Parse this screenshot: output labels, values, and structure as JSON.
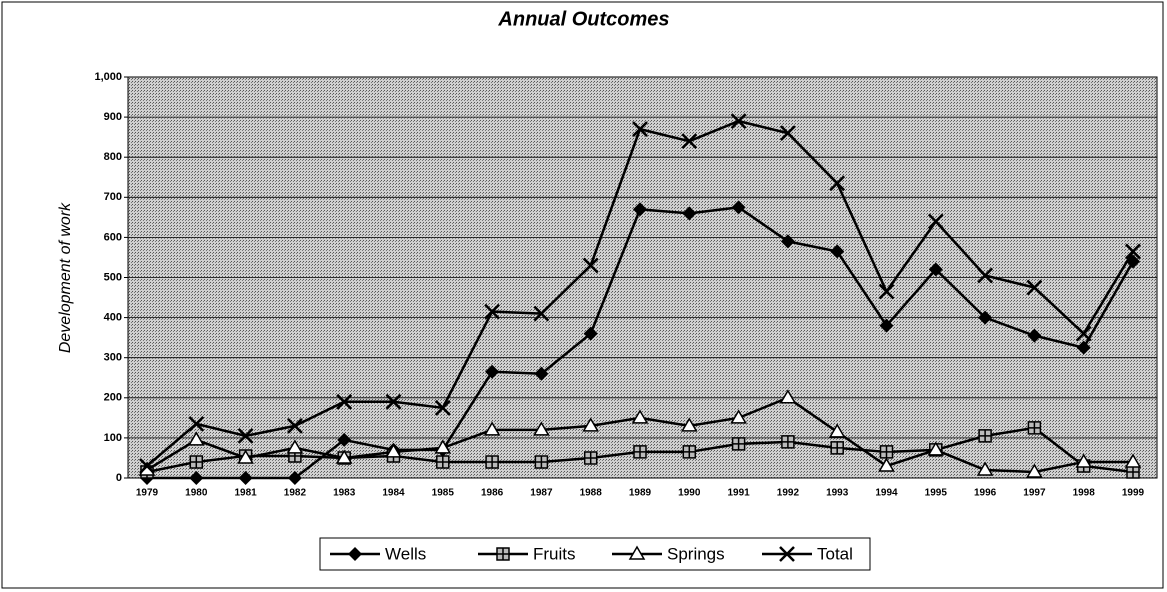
{
  "chart_data": {
    "type": "line",
    "title": "Annual Outcomes",
    "y_label": "Development of work",
    "categories": [
      "1979",
      "1980",
      "1981",
      "1982",
      "1983",
      "1984",
      "1985",
      "1986",
      "1987",
      "1988",
      "1989",
      "1990",
      "1991",
      "1992",
      "1993",
      "1994",
      "1995",
      "1996",
      "1997",
      "1998",
      "1999"
    ],
    "series": [
      {
        "name": "Wells",
        "color": "#000000",
        "marker": "diamond",
        "values": [
          0,
          0,
          0,
          0,
          95,
          70,
          70,
          265,
          260,
          360,
          670,
          660,
          675,
          590,
          565,
          380,
          520,
          400,
          355,
          325,
          540
        ]
      },
      {
        "name": "Fruits",
        "color": "#000000",
        "marker": "square",
        "values": [
          15,
          40,
          55,
          55,
          50,
          55,
          40,
          40,
          40,
          50,
          65,
          65,
          85,
          90,
          75,
          65,
          70,
          105,
          125,
          30,
          15
        ]
      },
      {
        "name": "Springs",
        "color": "#000000",
        "marker": "triangle",
        "values": [
          20,
          95,
          50,
          75,
          50,
          65,
          75,
          120,
          120,
          130,
          150,
          130,
          150,
          200,
          115,
          30,
          70,
          20,
          15,
          40,
          40
        ]
      },
      {
        "name": "Total",
        "color": "#000000",
        "marker": "x",
        "values": [
          30,
          135,
          105,
          130,
          190,
          190,
          175,
          415,
          410,
          530,
          870,
          840,
          890,
          860,
          735,
          465,
          640,
          505,
          475,
          360,
          565
        ]
      }
    ],
    "ylim": [
      0,
      1000
    ],
    "yticks": [
      0,
      100,
      200,
      300,
      400,
      500,
      600,
      700,
      800,
      900,
      {
        "value": 1000,
        "label": "1,000"
      }
    ],
    "grid": true,
    "legend": "bottom"
  }
}
